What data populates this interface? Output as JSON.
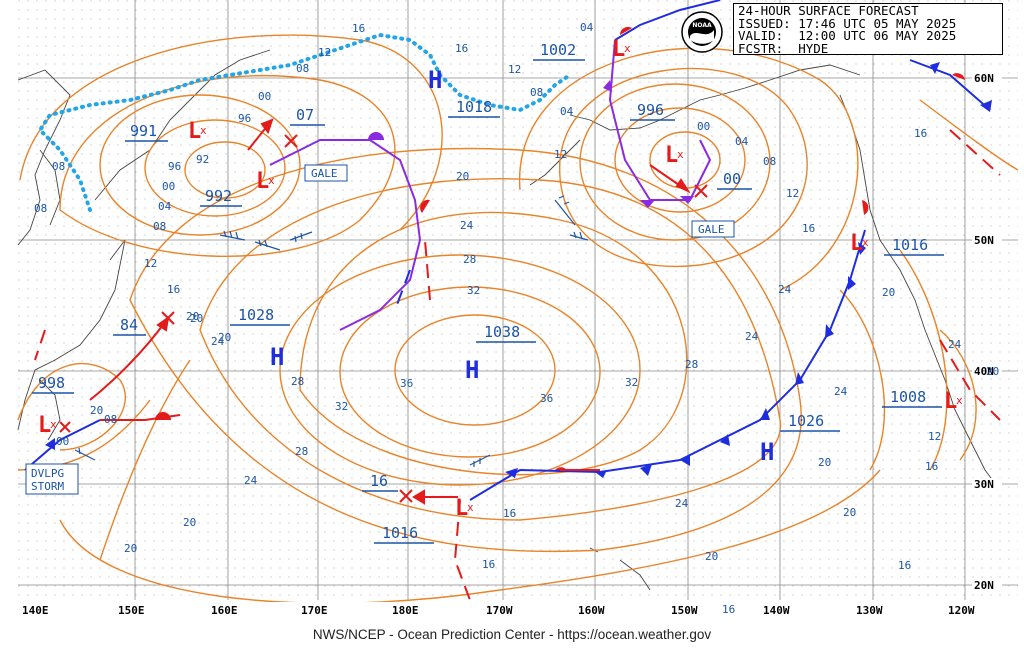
{
  "header": {
    "line1": "24-HOUR SURFACE FORECAST",
    "line2": "ISSUED: 17:46 UTC 05 MAY 2025",
    "line3": "VALID:  12:00 UTC 06 MAY 2025",
    "line4": "FCSTR:  HYDE"
  },
  "logo_text": "NOAA",
  "footer": "NWS/NCEP - Ocean Prediction Center - https://ocean.weather.gov",
  "longitude_labels": [
    "140E",
    "150E",
    "160E",
    "170E",
    "180E",
    "170W",
    "160W",
    "150W",
    "140W",
    "130W",
    "120W"
  ],
  "latitude_labels": [
    "60N",
    "50N",
    "40N",
    "30N",
    "20N"
  ],
  "pressure_centers": [
    {
      "name": "low-991",
      "value": "991"
    },
    {
      "name": "low-992",
      "value": "992"
    },
    {
      "name": "low-07",
      "value": "07"
    },
    {
      "name": "low-84",
      "value": "84"
    },
    {
      "name": "low-998",
      "value": "998"
    },
    {
      "name": "high-1018",
      "value": "1018"
    },
    {
      "name": "low-1002",
      "value": "1002"
    },
    {
      "name": "low-996",
      "value": "996"
    },
    {
      "name": "low-00",
      "value": "00"
    },
    {
      "name": "high-1028",
      "value": "1028"
    },
    {
      "name": "high-1038",
      "value": "1038"
    },
    {
      "name": "low-16",
      "value": "16"
    },
    {
      "name": "high-1016-south",
      "value": "1016"
    },
    {
      "name": "high-1026",
      "value": "1026"
    },
    {
      "name": "low-1016-east",
      "value": "1016"
    },
    {
      "name": "low-1008",
      "value": "1008"
    }
  ],
  "warnings": [
    {
      "name": "gale-west",
      "value": "GALE"
    },
    {
      "name": "gale-gulf",
      "value": "GALE"
    },
    {
      "name": "dvlpg-storm-1",
      "value": "DVLPG"
    },
    {
      "name": "dvlpg-storm-2",
      "value": "STORM"
    }
  ],
  "isobar_labels": [
    "16",
    "12",
    "08",
    "16",
    "12",
    "04",
    "00",
    "96",
    "92",
    "96",
    "00",
    "04",
    "08",
    "08",
    "08",
    "12",
    "16",
    "20",
    "24",
    "28",
    "24",
    "20",
    "24",
    "28",
    "32",
    "36",
    "32",
    "36",
    "28",
    "24",
    "20",
    "16",
    "20",
    "24",
    "28",
    "32",
    "20",
    "24",
    "16",
    "20",
    "24",
    "20",
    "16",
    "12",
    "08",
    "04",
    "00",
    "04",
    "08",
    "12",
    "16",
    "20",
    "24",
    "20",
    "16",
    "20",
    "16",
    "12",
    "20",
    "08",
    "00",
    "20",
    "16"
  ],
  "colors": {
    "isobar": "#e8842a",
    "cold_front": "#1f2de0",
    "warm_front": "#e41b1b",
    "occluded": "#8a2be2",
    "ice_edge": "#23a5e8",
    "label": "#1b55a8",
    "coast": "#444444",
    "grid": "#8a8a8a"
  }
}
